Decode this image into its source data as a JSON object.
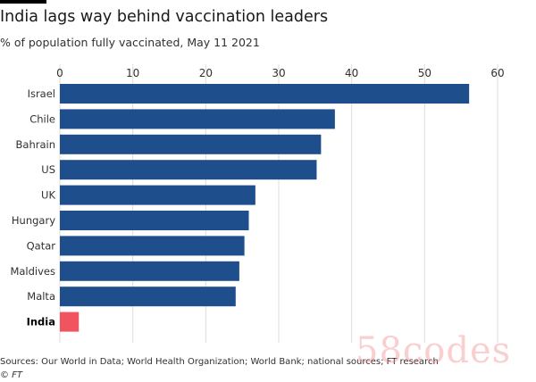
{
  "header": {
    "title": "India lags way behind vaccination leaders",
    "subtitle": "% of population fully vaccinated, May 11 2021"
  },
  "footer": {
    "source": "Sources: Our World in Data; World Health Organization; World Bank; national sources; FT research",
    "copyright": "© FT"
  },
  "watermark": "58codes",
  "colors": {
    "bar": "#1e4f8c",
    "highlight": "#f0555f",
    "grid": "#e0dcd6",
    "text": "#33302e"
  },
  "chart_data": {
    "type": "bar",
    "orientation": "horizontal",
    "categories": [
      "Israel",
      "Chile",
      "Bahrain",
      "US",
      "UK",
      "Hungary",
      "Qatar",
      "Maldives",
      "Malta",
      "India"
    ],
    "values": [
      56.1,
      37.7,
      35.8,
      35.2,
      26.8,
      25.9,
      25.3,
      24.6,
      24.1,
      2.6
    ],
    "highlight": "India",
    "xlim": [
      0,
      60
    ],
    "xticks": [
      0,
      10,
      20,
      30,
      40,
      50,
      60
    ],
    "axis_position": "top",
    "grid": true
  }
}
